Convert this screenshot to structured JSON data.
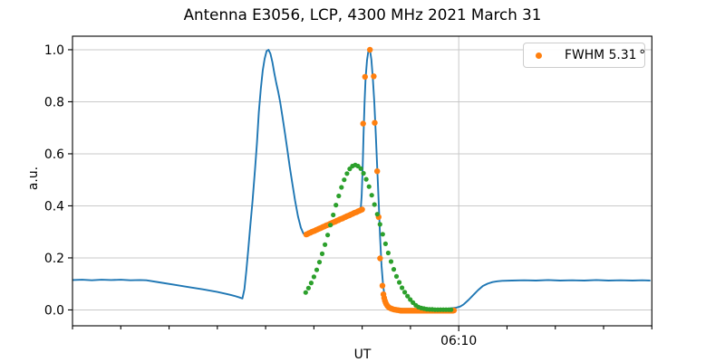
{
  "figure": {
    "background": "#ffffff"
  },
  "chart_data": {
    "type": "line",
    "title": "Antenna E3056, LCP, 4300 MHz 2021 March 31",
    "xlabel": "UT",
    "ylabel": "a.u.",
    "grid": true,
    "xlim_minutes_after_0600": [
      2,
      14
    ],
    "ylim": [
      -0.061,
      1.052
    ],
    "y_ticks": {
      "values": [
        0.0,
        0.2,
        0.4,
        0.6,
        0.8,
        1.0
      ],
      "labels": [
        "0.0",
        "0.2",
        "0.4",
        "0.6",
        "0.8",
        "1.0"
      ]
    },
    "x_ticks": {
      "minor_minutes": [
        2,
        3,
        4,
        5,
        6,
        7,
        8,
        9,
        10,
        11,
        12,
        13,
        14
      ],
      "major": {
        "minute": 10,
        "label": "06:10"
      }
    },
    "style": {
      "grid_color": "#c9c9c9",
      "spine_color": "#000000",
      "background": "#ffffff"
    },
    "legend": {
      "label": "FWHM 5.31 °",
      "marker_color": "#ff7f0e",
      "position": "upper right"
    },
    "series": [
      {
        "name": "signal-trace",
        "kind": "line",
        "color": "#1f77b4",
        "linewidth": 1.9,
        "points": [
          [
            2.0,
            0.115
          ],
          [
            2.2,
            0.116
          ],
          [
            2.4,
            0.114
          ],
          [
            2.6,
            0.116
          ],
          [
            2.8,
            0.115
          ],
          [
            3.0,
            0.116
          ],
          [
            3.2,
            0.114
          ],
          [
            3.4,
            0.115
          ],
          [
            3.53,
            0.114
          ],
          [
            3.8,
            0.106
          ],
          [
            4.1,
            0.097
          ],
          [
            4.4,
            0.088
          ],
          [
            4.7,
            0.079
          ],
          [
            5.0,
            0.069
          ],
          [
            5.2,
            0.061
          ],
          [
            5.35,
            0.054
          ],
          [
            5.46,
            0.048
          ],
          [
            5.52,
            0.044
          ],
          [
            5.56,
            0.08
          ],
          [
            5.6,
            0.15
          ],
          [
            5.64,
            0.23
          ],
          [
            5.68,
            0.32
          ],
          [
            5.73,
            0.42
          ],
          [
            5.78,
            0.54
          ],
          [
            5.82,
            0.64
          ],
          [
            5.86,
            0.76
          ],
          [
            5.9,
            0.85
          ],
          [
            5.94,
            0.92
          ],
          [
            5.98,
            0.965
          ],
          [
            6.02,
            0.995
          ],
          [
            6.06,
            1.0
          ],
          [
            6.1,
            0.985
          ],
          [
            6.14,
            0.952
          ],
          [
            6.18,
            0.91
          ],
          [
            6.22,
            0.873
          ],
          [
            6.26,
            0.838
          ],
          [
            6.3,
            0.8
          ],
          [
            6.35,
            0.742
          ],
          [
            6.4,
            0.68
          ],
          [
            6.45,
            0.615
          ],
          [
            6.5,
            0.55
          ],
          [
            6.55,
            0.49
          ],
          [
            6.61,
            0.42
          ],
          [
            6.67,
            0.36
          ],
          [
            6.73,
            0.316
          ],
          [
            6.78,
            0.294
          ],
          [
            6.82,
            0.287
          ],
          [
            6.95,
            0.298
          ],
          [
            7.1,
            0.309
          ],
          [
            7.25,
            0.322
          ],
          [
            7.4,
            0.334
          ],
          [
            7.55,
            0.347
          ],
          [
            7.7,
            0.359
          ],
          [
            7.85,
            0.371
          ],
          [
            7.95,
            0.38
          ],
          [
            7.97,
            0.39
          ],
          [
            7.99,
            0.44
          ],
          [
            8.01,
            0.55
          ],
          [
            8.03,
            0.68
          ],
          [
            8.05,
            0.8
          ],
          [
            8.07,
            0.89
          ],
          [
            8.1,
            0.96
          ],
          [
            8.13,
            0.998
          ],
          [
            8.16,
            1.0
          ],
          [
            8.19,
            0.962
          ],
          [
            8.22,
            0.89
          ],
          [
            8.25,
            0.8
          ],
          [
            8.28,
            0.68
          ],
          [
            8.31,
            0.55
          ],
          [
            8.34,
            0.42
          ],
          [
            8.37,
            0.28
          ],
          [
            8.4,
            0.17
          ],
          [
            8.43,
            0.1
          ],
          [
            8.46,
            0.055
          ],
          [
            8.5,
            0.03
          ],
          [
            8.54,
            0.018
          ],
          [
            8.6,
            0.011
          ],
          [
            8.7,
            0.006
          ],
          [
            8.85,
            0.004
          ],
          [
            9.0,
            0.004
          ],
          [
            9.2,
            0.003
          ],
          [
            9.4,
            0.003
          ],
          [
            9.6,
            0.004
          ],
          [
            9.8,
            0.005
          ],
          [
            9.95,
            0.009
          ],
          [
            10.03,
            0.013
          ],
          [
            10.1,
            0.021
          ],
          [
            10.2,
            0.038
          ],
          [
            10.3,
            0.057
          ],
          [
            10.4,
            0.076
          ],
          [
            10.5,
            0.092
          ],
          [
            10.6,
            0.101
          ],
          [
            10.7,
            0.107
          ],
          [
            10.8,
            0.11
          ],
          [
            10.9,
            0.112
          ],
          [
            11.1,
            0.113
          ],
          [
            11.35,
            0.114
          ],
          [
            11.6,
            0.113
          ],
          [
            11.85,
            0.115
          ],
          [
            12.1,
            0.113
          ],
          [
            12.35,
            0.114
          ],
          [
            12.6,
            0.113
          ],
          [
            12.85,
            0.115
          ],
          [
            13.1,
            0.113
          ],
          [
            13.35,
            0.114
          ],
          [
            13.6,
            0.113
          ],
          [
            13.8,
            0.114
          ],
          [
            13.97,
            0.113
          ]
        ]
      },
      {
        "name": "fwhm-markers",
        "kind": "markers",
        "color": "#ff7f0e",
        "marker_radius": 3.2,
        "in_legend": true,
        "points": [
          [
            6.84,
            0.29
          ],
          [
            6.869,
            0.292
          ],
          [
            6.898,
            0.295
          ],
          [
            6.927,
            0.297
          ],
          [
            6.956,
            0.3
          ],
          [
            6.985,
            0.302
          ],
          [
            7.014,
            0.304
          ],
          [
            7.043,
            0.307
          ],
          [
            7.072,
            0.309
          ],
          [
            7.101,
            0.312
          ],
          [
            7.13,
            0.314
          ],
          [
            7.159,
            0.316
          ],
          [
            7.188,
            0.319
          ],
          [
            7.217,
            0.321
          ],
          [
            7.246,
            0.324
          ],
          [
            7.275,
            0.326
          ],
          [
            7.304,
            0.328
          ],
          [
            7.333,
            0.331
          ],
          [
            7.362,
            0.333
          ],
          [
            7.391,
            0.336
          ],
          [
            7.42,
            0.338
          ],
          [
            7.449,
            0.34
          ],
          [
            7.478,
            0.343
          ],
          [
            7.507,
            0.345
          ],
          [
            7.536,
            0.348
          ],
          [
            7.565,
            0.35
          ],
          [
            7.594,
            0.352
          ],
          [
            7.623,
            0.355
          ],
          [
            7.652,
            0.357
          ],
          [
            7.681,
            0.36
          ],
          [
            7.71,
            0.362
          ],
          [
            7.739,
            0.364
          ],
          [
            7.768,
            0.367
          ],
          [
            7.797,
            0.369
          ],
          [
            7.826,
            0.372
          ],
          [
            7.855,
            0.374
          ],
          [
            7.884,
            0.376
          ],
          [
            7.913,
            0.379
          ],
          [
            7.942,
            0.381
          ],
          [
            7.971,
            0.384
          ],
          [
            8.0,
            0.386
          ],
          [
            8.02,
            0.716
          ],
          [
            8.06,
            0.896
          ],
          [
            8.16,
            1.0
          ],
          [
            8.24,
            0.898
          ],
          [
            8.26,
            0.719
          ],
          [
            8.31,
            0.533
          ],
          [
            8.34,
            0.357
          ],
          [
            8.37,
            0.198
          ],
          [
            8.42,
            0.093
          ],
          [
            8.44,
            0.06
          ],
          [
            8.455,
            0.046
          ],
          [
            8.47,
            0.036
          ],
          [
            8.485,
            0.028
          ],
          [
            8.5,
            0.022
          ],
          [
            8.52,
            0.016
          ],
          [
            8.54,
            0.012
          ],
          [
            8.56,
            0.009
          ],
          [
            8.59,
            0.006
          ],
          [
            8.62,
            0.004
          ],
          [
            8.65,
            0.002
          ],
          [
            8.68,
            0.001
          ],
          [
            8.71,
            0.0
          ],
          [
            8.74,
            -0.001
          ],
          [
            8.77,
            -0.002
          ],
          [
            8.8,
            -0.003
          ],
          [
            8.829,
            -0.003
          ],
          [
            8.858,
            -0.003
          ],
          [
            8.887,
            -0.003
          ],
          [
            8.916,
            -0.003
          ],
          [
            8.945,
            -0.003
          ],
          [
            8.974,
            -0.003
          ],
          [
            9.003,
            -0.003
          ],
          [
            9.032,
            -0.003
          ],
          [
            9.061,
            -0.003
          ],
          [
            9.09,
            -0.003
          ],
          [
            9.119,
            -0.003
          ],
          [
            9.148,
            -0.003
          ],
          [
            9.177,
            -0.003
          ],
          [
            9.206,
            -0.003
          ],
          [
            9.235,
            -0.003
          ],
          [
            9.264,
            -0.003
          ],
          [
            9.293,
            -0.003
          ],
          [
            9.322,
            -0.003
          ],
          [
            9.351,
            -0.003
          ],
          [
            9.38,
            -0.003
          ],
          [
            9.409,
            -0.003
          ],
          [
            9.438,
            -0.003
          ],
          [
            9.467,
            -0.003
          ],
          [
            9.496,
            -0.003
          ],
          [
            9.525,
            -0.003
          ],
          [
            9.554,
            -0.003
          ],
          [
            9.583,
            -0.003
          ],
          [
            9.612,
            -0.003
          ],
          [
            9.641,
            -0.003
          ],
          [
            9.67,
            -0.003
          ],
          [
            9.699,
            -0.003
          ],
          [
            9.728,
            -0.003
          ],
          [
            9.757,
            -0.003
          ],
          [
            9.786,
            -0.003
          ],
          [
            9.815,
            -0.003
          ],
          [
            9.844,
            -0.003
          ],
          [
            9.873,
            -0.003
          ],
          [
            9.9,
            -0.002
          ]
        ]
      },
      {
        "name": "gaussian-fit-dots",
        "kind": "markers",
        "color": "#2ca02c",
        "marker_radius": 2.6,
        "in_legend": false,
        "points": [
          [
            6.83,
            0.067
          ],
          [
            6.887,
            0.084
          ],
          [
            6.944,
            0.104
          ],
          [
            7.001,
            0.127
          ],
          [
            7.058,
            0.154
          ],
          [
            7.115,
            0.184
          ],
          [
            7.172,
            0.216
          ],
          [
            7.229,
            0.251
          ],
          [
            7.286,
            0.288
          ],
          [
            7.343,
            0.326
          ],
          [
            7.4,
            0.365
          ],
          [
            7.457,
            0.403
          ],
          [
            7.514,
            0.438
          ],
          [
            7.571,
            0.471
          ],
          [
            7.628,
            0.5
          ],
          [
            7.685,
            0.524
          ],
          [
            7.742,
            0.542
          ],
          [
            7.799,
            0.553
          ],
          [
            7.856,
            0.557
          ],
          [
            7.913,
            0.553
          ],
          [
            7.97,
            0.543
          ],
          [
            8.027,
            0.525
          ],
          [
            8.084,
            0.502
          ],
          [
            8.141,
            0.474
          ],
          [
            8.198,
            0.441
          ],
          [
            8.255,
            0.405
          ],
          [
            8.312,
            0.368
          ],
          [
            8.369,
            0.329
          ],
          [
            8.426,
            0.291
          ],
          [
            8.483,
            0.254
          ],
          [
            8.54,
            0.219
          ],
          [
            8.597,
            0.186
          ],
          [
            8.654,
            0.156
          ],
          [
            8.711,
            0.129
          ],
          [
            8.768,
            0.106
          ],
          [
            8.825,
            0.085
          ],
          [
            8.882,
            0.068
          ],
          [
            8.939,
            0.053
          ],
          [
            8.996,
            0.04
          ],
          [
            9.053,
            0.028
          ],
          [
            9.11,
            0.018
          ],
          [
            9.167,
            0.011
          ],
          [
            9.224,
            0.007
          ],
          [
            9.281,
            0.005
          ],
          [
            9.338,
            0.003
          ],
          [
            9.395,
            0.002
          ],
          [
            9.452,
            0.002
          ],
          [
            9.509,
            0.001
          ],
          [
            9.566,
            0.001
          ],
          [
            9.623,
            0.001
          ],
          [
            9.68,
            0.001
          ],
          [
            9.737,
            0.001
          ],
          [
            9.794,
            0.001
          ],
          [
            9.84,
            0.001
          ]
        ]
      }
    ]
  }
}
